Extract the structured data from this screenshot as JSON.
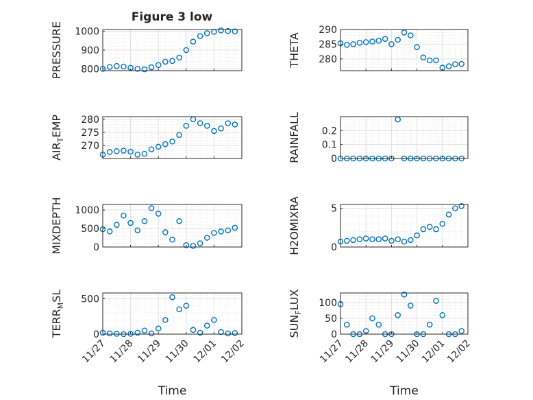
{
  "figure_title": "Figure 3 low",
  "marker_color": "#0072BD",
  "chart_data": [
    {
      "type": "scatter",
      "ylabel": "PRESSURE",
      "ylim": [
        790,
        1010
      ],
      "yticks": [
        800,
        900,
        1000
      ],
      "grid": true,
      "x": [
        "11/27 0:00",
        "11/27 6:00",
        "11/27 12:00",
        "11/27 18:00",
        "11/28 0:00",
        "11/28 6:00",
        "11/28 12:00",
        "11/28 18:00",
        "11/29 0:00",
        "11/29 6:00",
        "11/29 12:00",
        "11/29 18:00",
        "11/30 0:00",
        "11/30 6:00",
        "11/30 12:00",
        "11/30 18:00",
        "12/01 0:00",
        "12/01 6:00",
        "12/01 12:00",
        "12/01 18:00"
      ],
      "y": [
        800,
        810,
        815,
        812,
        805,
        800,
        797,
        808,
        820,
        838,
        842,
        860,
        900,
        945,
        975,
        990,
        998,
        1005,
        1002,
        1000
      ]
    },
    {
      "type": "scatter",
      "ylabel": "THETA",
      "ylim": [
        276,
        290
      ],
      "yticks": [
        280,
        285,
        290
      ],
      "grid": true,
      "x": [
        "11/27 0:00",
        "11/27 6:00",
        "11/27 12:00",
        "11/27 18:00",
        "11/28 0:00",
        "11/28 6:00",
        "11/28 12:00",
        "11/28 18:00",
        "11/29 0:00",
        "11/29 6:00",
        "11/29 12:00",
        "11/29 18:00",
        "11/30 0:00",
        "11/30 6:00",
        "11/30 12:00",
        "11/30 18:00",
        "12/01 0:00",
        "12/01 6:00",
        "12/01 12:00",
        "12/01 18:00"
      ],
      "y": [
        285.3,
        284.8,
        285.0,
        285.5,
        285.7,
        285.9,
        286.2,
        286.8,
        285.0,
        286.5,
        289.0,
        288.0,
        284.0,
        280.5,
        279.5,
        279.5,
        277.0,
        277.5,
        278.2,
        278.3
      ]
    },
    {
      "type": "scatter",
      "ylabel": "AIR_TEMP",
      "ylim": [
        265,
        281
      ],
      "yticks": [
        270,
        275,
        280
      ],
      "grid": true,
      "x": [
        "11/27 0:00",
        "11/27 6:00",
        "11/27 12:00",
        "11/27 18:00",
        "11/28 0:00",
        "11/28 6:00",
        "11/28 12:00",
        "11/28 18:00",
        "11/29 0:00",
        "11/29 6:00",
        "11/29 12:00",
        "11/29 18:00",
        "11/30 0:00",
        "11/30 6:00",
        "11/30 12:00",
        "11/30 18:00",
        "12/01 0:00",
        "12/01 6:00",
        "12/01 12:00",
        "12/01 18:00"
      ],
      "y": [
        266.5,
        267.5,
        267.8,
        268.0,
        267.6,
        266.5,
        266.8,
        268.5,
        269.5,
        270.5,
        271.5,
        274.0,
        277.5,
        280.0,
        278.5,
        277.5,
        275.5,
        276.5,
        278.5,
        278.0
      ]
    },
    {
      "type": "scatter",
      "ylabel": "RAINFALL",
      "ylim": [
        0,
        0.3
      ],
      "yticks": [
        0,
        0.1,
        0.2
      ],
      "grid": true,
      "x": [
        "11/27 0:00",
        "11/27 6:00",
        "11/27 12:00",
        "11/27 18:00",
        "11/28 0:00",
        "11/28 6:00",
        "11/28 12:00",
        "11/28 18:00",
        "11/29 0:00",
        "11/29 6:00",
        "11/29 12:00",
        "11/29 18:00",
        "11/30 0:00",
        "11/30 6:00",
        "11/30 12:00",
        "11/30 18:00",
        "12/01 0:00",
        "12/01 6:00",
        "12/01 12:00",
        "12/01 18:00"
      ],
      "y": [
        0,
        0,
        0,
        0,
        0,
        0,
        0,
        0,
        0,
        0.28,
        0,
        0,
        0,
        0,
        0,
        0,
        0,
        0,
        0,
        0
      ]
    },
    {
      "type": "scatter",
      "ylabel": "MIXDEPTH",
      "ylim": [
        0,
        1150
      ],
      "yticks": [
        0,
        500,
        1000
      ],
      "grid": true,
      "x": [
        "11/27 0:00",
        "11/27 6:00",
        "11/27 12:00",
        "11/27 18:00",
        "11/28 0:00",
        "11/28 6:00",
        "11/28 12:00",
        "11/28 18:00",
        "11/29 0:00",
        "11/29 6:00",
        "11/29 12:00",
        "11/29 18:00",
        "11/30 0:00",
        "11/30 6:00",
        "11/30 12:00",
        "11/30 18:00",
        "12/01 0:00",
        "12/01 6:00",
        "12/01 12:00",
        "12/01 18:00"
      ],
      "y": [
        480,
        420,
        600,
        850,
        650,
        450,
        700,
        1050,
        900,
        400,
        200,
        700,
        50,
        30,
        100,
        250,
        380,
        420,
        450,
        520
      ]
    },
    {
      "type": "scatter",
      "ylabel": "H2OMIXRA",
      "ylim": [
        0,
        5.5
      ],
      "yticks": [
        0,
        5
      ],
      "grid": true,
      "x": [
        "11/27 0:00",
        "11/27 6:00",
        "11/27 12:00",
        "11/27 18:00",
        "11/28 0:00",
        "11/28 6:00",
        "11/28 12:00",
        "11/28 18:00",
        "11/29 0:00",
        "11/29 6:00",
        "11/29 12:00",
        "11/29 18:00",
        "11/30 0:00",
        "11/30 6:00",
        "11/30 12:00",
        "11/30 18:00",
        "12/01 0:00",
        "12/01 6:00",
        "12/01 12:00",
        "12/01 18:00"
      ],
      "y": [
        0.7,
        0.8,
        0.9,
        1.0,
        1.1,
        1.0,
        1.0,
        1.1,
        0.8,
        1.0,
        0.7,
        0.9,
        1.5,
        2.3,
        2.6,
        2.3,
        3.0,
        4.2,
        5.0,
        5.3
      ]
    },
    {
      "type": "scatter",
      "ylabel": "TERR_MSL",
      "ylim": [
        0,
        580
      ],
      "yticks": [
        0,
        500
      ],
      "grid": true,
      "x": [
        "11/27 0:00",
        "11/27 6:00",
        "11/27 12:00",
        "11/27 18:00",
        "11/28 0:00",
        "11/28 6:00",
        "11/28 12:00",
        "11/28 18:00",
        "11/29 0:00",
        "11/29 6:00",
        "11/29 12:00",
        "11/29 18:00",
        "11/30 0:00",
        "11/30 6:00",
        "11/30 12:00",
        "11/30 18:00",
        "12/01 0:00",
        "12/01 6:00",
        "12/01 12:00",
        "12/01 18:00"
      ],
      "y": [
        20,
        10,
        5,
        0,
        5,
        20,
        50,
        10,
        80,
        200,
        520,
        350,
        400,
        60,
        20,
        120,
        200,
        30,
        10,
        15
      ]
    },
    {
      "type": "scatter",
      "ylabel": "SUN_FLUX",
      "ylim": [
        0,
        130
      ],
      "yticks": [
        0,
        50,
        100
      ],
      "grid": true,
      "x": [
        "11/27 0:00",
        "11/27 6:00",
        "11/27 12:00",
        "11/27 18:00",
        "11/28 0:00",
        "11/28 6:00",
        "11/28 12:00",
        "11/28 18:00",
        "11/29 0:00",
        "11/29 6:00",
        "11/29 12:00",
        "11/29 18:00",
        "11/30 0:00",
        "11/30 6:00",
        "11/30 12:00",
        "11/30 18:00",
        "12/01 0:00",
        "12/01 6:00",
        "12/01 12:00",
        "12/01 18:00"
      ],
      "y": [
        95,
        30,
        0,
        0,
        10,
        50,
        30,
        0,
        0,
        60,
        125,
        90,
        0,
        0,
        30,
        105,
        60,
        0,
        0,
        10
      ]
    }
  ],
  "x_axis": {
    "xlabel": "Time",
    "xticklabels": [
      "11/27",
      "11/28",
      "11/29",
      "11/30",
      "12/01",
      "12/02"
    ]
  }
}
